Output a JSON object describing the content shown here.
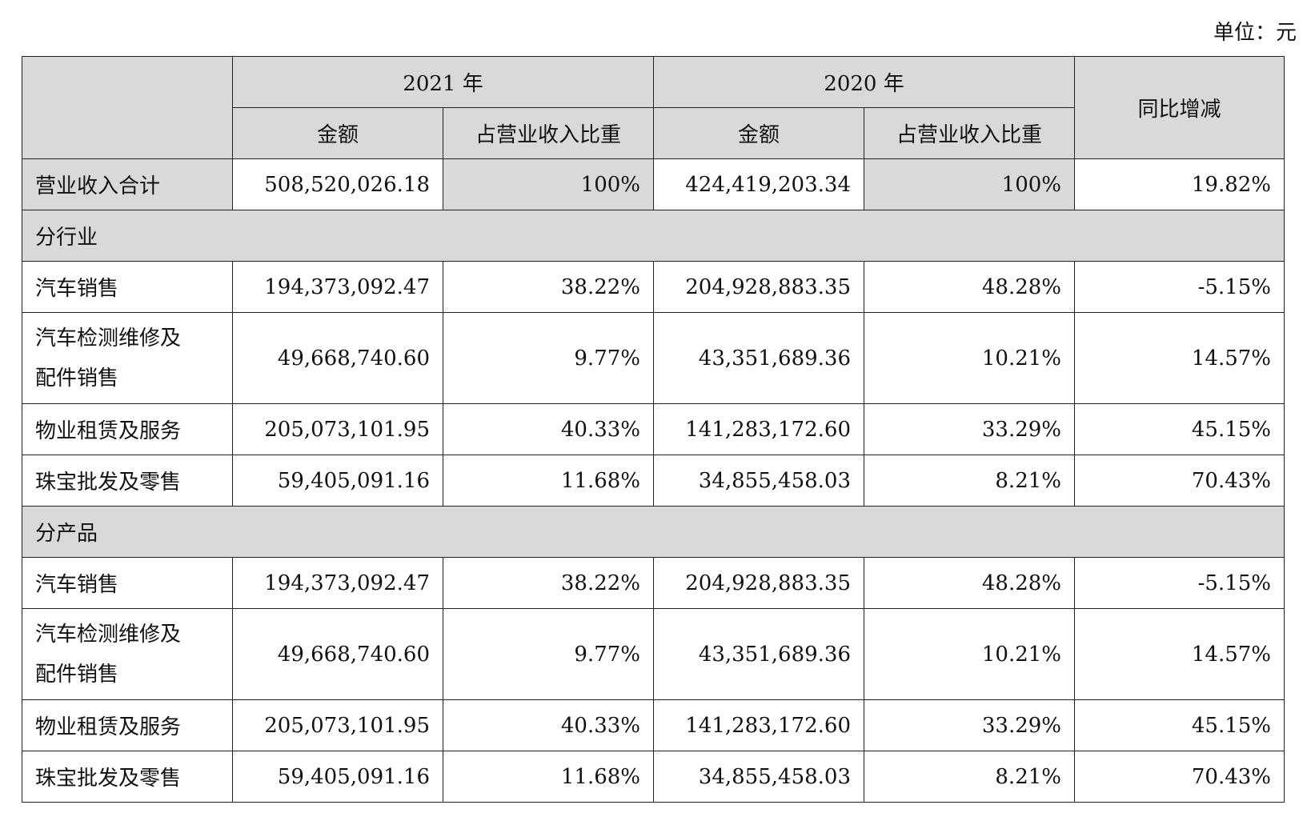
{
  "unit": "单位：元",
  "header": {
    "year1": "2021 年",
    "year2": "2020 年",
    "yoy": "同比增减",
    "amount": "金额",
    "share": "占营业收入比重"
  },
  "total": {
    "label": "营业收入合计",
    "amt2021": "508,520,026.18",
    "share2021": "100%",
    "amt2020": "424,419,203.34",
    "share2020": "100%",
    "yoy": "19.82%"
  },
  "sections": [
    {
      "title": "分行业",
      "rows": [
        {
          "label": "汽车销售",
          "amt2021": "194,373,092.47",
          "share2021": "38.22%",
          "amt2020": "204,928,883.35",
          "share2020": "48.28%",
          "yoy": "-5.15%"
        },
        {
          "label": "汽车检测维修及\n配件销售",
          "amt2021": "49,668,740.60",
          "share2021": "9.77%",
          "amt2020": "43,351,689.36",
          "share2020": "10.21%",
          "yoy": "14.57%"
        },
        {
          "label": "物业租赁及服务",
          "amt2021": "205,073,101.95",
          "share2021": "40.33%",
          "amt2020": "141,283,172.60",
          "share2020": "33.29%",
          "yoy": "45.15%"
        },
        {
          "label": "珠宝批发及零售",
          "amt2021": "59,405,091.16",
          "share2021": "11.68%",
          "amt2020": "34,855,458.03",
          "share2020": "8.21%",
          "yoy": "70.43%"
        }
      ]
    },
    {
      "title": "分产品",
      "rows": [
        {
          "label": "汽车销售",
          "amt2021": "194,373,092.47",
          "share2021": "38.22%",
          "amt2020": "204,928,883.35",
          "share2020": "48.28%",
          "yoy": "-5.15%"
        },
        {
          "label": "汽车检测维修及\n配件销售",
          "amt2021": "49,668,740.60",
          "share2021": "9.77%",
          "amt2020": "43,351,689.36",
          "share2020": "10.21%",
          "yoy": "14.57%"
        },
        {
          "label": "物业租赁及服务",
          "amt2021": "205,073,101.95",
          "share2021": "40.33%",
          "amt2020": "141,283,172.60",
          "share2020": "33.29%",
          "yoy": "45.15%"
        },
        {
          "label": "珠宝批发及零售",
          "amt2021": "59,405,091.16",
          "share2021": "11.68%",
          "amt2020": "34,855,458.03",
          "share2020": "8.21%",
          "yoy": "70.43%"
        }
      ]
    }
  ]
}
